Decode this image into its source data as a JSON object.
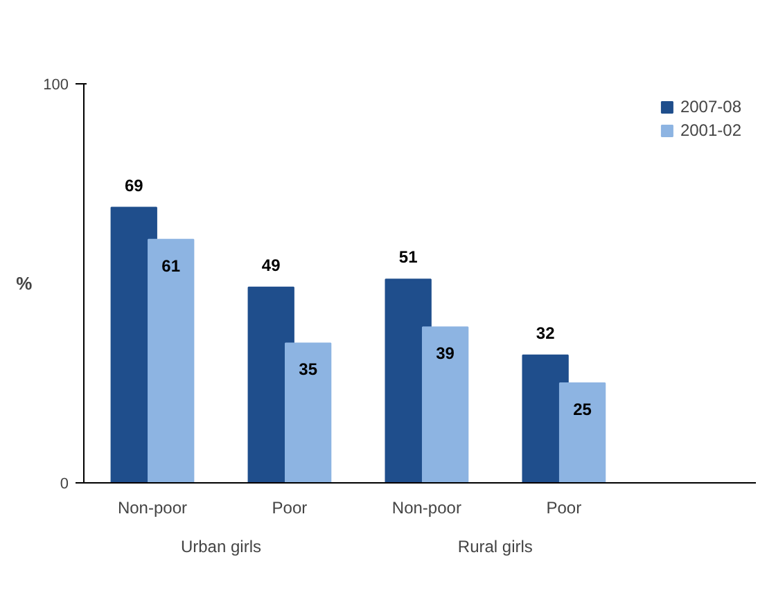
{
  "chart_data": {
    "type": "bar",
    "ylabel": "%",
    "categories": [
      "Non-poor",
      "Poor",
      "Non-poor",
      "Poor"
    ],
    "series": [
      {
        "name": "2007-08",
        "color": "#1f4e8c",
        "values": [
          69,
          49,
          51,
          32
        ]
      },
      {
        "name": "2001-02",
        "color": "#8db4e2",
        "values": [
          61,
          35,
          39,
          25
        ]
      }
    ],
    "annotations": [
      "Urban girls",
      "Rural girls"
    ],
    "ylim": [
      0,
      100
    ],
    "yticks": [
      0,
      100
    ],
    "data_labels": true,
    "legend": "right",
    "grid": false
  }
}
